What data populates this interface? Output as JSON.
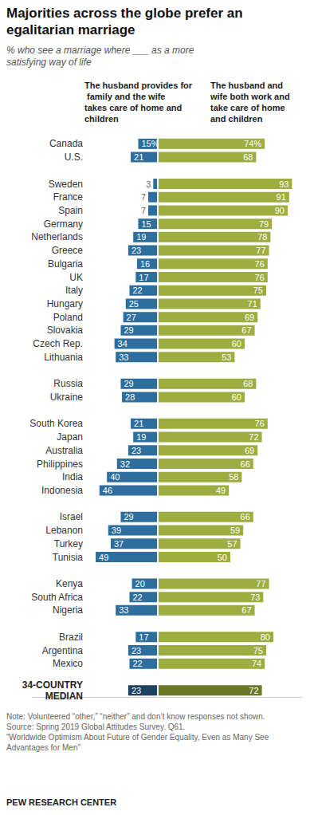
{
  "chart_data": {
    "type": "bar",
    "orientation": "horizontal",
    "title": "Majorities across the globe prefer an egalitarian marriage",
    "subtitle": "% who see a marriage where ___ as a more satisfying way of life",
    "categories": [
      "Canada",
      "U.S.",
      null,
      "Sweden",
      "France",
      "Spain",
      "Germany",
      "Netherlands",
      "Greece",
      "Bulgaria",
      "UK",
      "Italy",
      "Hungary",
      "Poland",
      "Slovakia",
      "Czech Rep.",
      "Lithuania",
      null,
      "Russia",
      "Ukraine",
      null,
      "South Korea",
      "Japan",
      "Australia",
      "Philippines",
      "India",
      "Indonesia",
      null,
      "Israel",
      "Lebanon",
      "Turkey",
      "Tunisia",
      null,
      "Kenya",
      "South Africa",
      "Nigeria",
      null,
      "Brazil",
      "Argentina",
      "Mexico",
      null,
      "34-COUNTRY\nMEDIAN"
    ],
    "series": [
      {
        "name": "The husband provides for family and the wife takes care of home and children",
        "colors": [
          "#2d6e9e",
          "#2d6e9e",
          null,
          "#2d6e9e",
          "#2d6e9e",
          "#2d6e9e",
          "#2d6e9e",
          "#2d6e9e",
          "#2d6e9e",
          "#2d6e9e",
          "#2d6e9e",
          "#2d6e9e",
          "#2d6e9e",
          "#2d6e9e",
          "#2d6e9e",
          "#2d6e9e",
          "#2d6e9e",
          null,
          "#2d6e9e",
          "#2d6e9e",
          null,
          "#2d6e9e",
          "#2d6e9e",
          "#2d6e9e",
          "#2d6e9e",
          "#2d6e9e",
          "#2d6e9e",
          null,
          "#2d6e9e",
          "#2d6e9e",
          "#2d6e9e",
          "#2d6e9e",
          null,
          "#2d6e9e",
          "#2d6e9e",
          "#2d6e9e",
          null,
          "#2d6e9e",
          "#2d6e9e",
          "#2d6e9e",
          null,
          "#1d4261"
        ],
        "values": [
          15,
          21,
          null,
          3,
          7,
          7,
          15,
          19,
          23,
          16,
          17,
          22,
          25,
          27,
          29,
          34,
          33,
          null,
          29,
          28,
          null,
          21,
          19,
          23,
          32,
          40,
          46,
          null,
          29,
          39,
          37,
          49,
          null,
          20,
          22,
          33,
          null,
          17,
          23,
          22,
          null,
          23
        ],
        "value_labels": [
          "15%",
          "21",
          null,
          "3",
          "7",
          "7",
          "15",
          "19",
          "23",
          "16",
          "17",
          "22",
          "25",
          "27",
          "29",
          "34",
          "33",
          null,
          "29",
          "28",
          null,
          "21",
          "19",
          "23",
          "32",
          "40",
          "46",
          null,
          "29",
          "39",
          "37",
          "49",
          null,
          "20",
          "22",
          "33",
          null,
          "17",
          "23",
          "22",
          null,
          "23"
        ]
      },
      {
        "name": "The husband and wife both work and take care of home and children",
        "colors": [
          "#9dad3f",
          "#9dad3f",
          null,
          "#9dad3f",
          "#9dad3f",
          "#9dad3f",
          "#9dad3f",
          "#9dad3f",
          "#9dad3f",
          "#9dad3f",
          "#9dad3f",
          "#9dad3f",
          "#9dad3f",
          "#9dad3f",
          "#9dad3f",
          "#9dad3f",
          "#9dad3f",
          null,
          "#9dad3f",
          "#9dad3f",
          null,
          "#9dad3f",
          "#9dad3f",
          "#9dad3f",
          "#9dad3f",
          "#9dad3f",
          "#9dad3f",
          null,
          "#9dad3f",
          "#9dad3f",
          "#9dad3f",
          "#9dad3f",
          null,
          "#9dad3f",
          "#9dad3f",
          "#9dad3f",
          null,
          "#9dad3f",
          "#9dad3f",
          "#9dad3f",
          null,
          "#6b7829"
        ],
        "values": [
          74,
          68,
          null,
          93,
          91,
          90,
          79,
          78,
          77,
          76,
          76,
          75,
          71,
          69,
          67,
          60,
          53,
          null,
          68,
          60,
          null,
          76,
          72,
          69,
          66,
          58,
          49,
          null,
          66,
          59,
          57,
          50,
          null,
          77,
          73,
          67,
          null,
          80,
          75,
          74,
          null,
          72
        ],
        "value_labels": [
          "74%",
          "68",
          null,
          "93",
          "91",
          "90",
          "79",
          "78",
          "77",
          "76",
          "76",
          "75",
          "71",
          "69",
          "67",
          "60",
          "53",
          null,
          "68",
          "60",
          null,
          "76",
          "72",
          "69",
          "66",
          "58",
          "49",
          null,
          "66",
          "59",
          "57",
          "50",
          null,
          "77",
          "73",
          "67",
          null,
          "80",
          "75",
          "74",
          null,
          "72"
        ]
      }
    ],
    "xlim": [
      0,
      100
    ],
    "tick_labels": false,
    "grid": false,
    "data_labels": true,
    "notes": [
      "Note: Volunteered “other,” “neither” and don’t know responses not shown.",
      "Source: Spring 2019 Global Attitudes Survey. Q61.",
      "“Worldwide Optimism About Future of Gender Equality, Even as Many See Advantages for Men”"
    ],
    "credit": "PEW RESEARCH CENTER"
  }
}
